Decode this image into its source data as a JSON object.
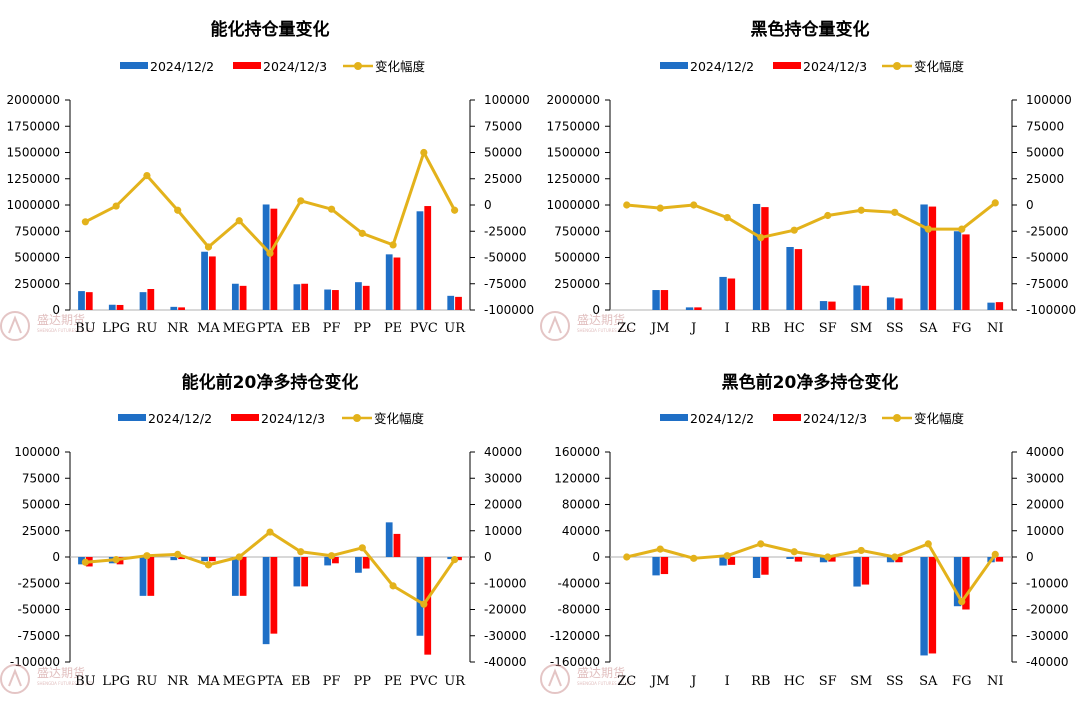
{
  "colors": {
    "series1": "#1f6fc6",
    "series2": "#ff0000",
    "line": "#e3b21b",
    "axis": "#000000",
    "watermark": "#c98b8b"
  },
  "watermark": {
    "text": "盛达期货",
    "sub": "SHENGDA FUTURES CO.,LTD."
  },
  "chart_data": [
    {
      "type": "bar",
      "title": "能化持仓量变化",
      "legend": [
        "2024/12/2",
        "2024/12/3",
        "变化幅度"
      ],
      "categories": [
        "BU",
        "LPG",
        "RU",
        "NR",
        "MA",
        "MEG",
        "PTA",
        "EB",
        "PF",
        "PP",
        "PE",
        "PVC",
        "UR"
      ],
      "series": [
        {
          "name": "2024/12/2",
          "values": [
            180000,
            50000,
            170000,
            30000,
            555000,
            250000,
            1005000,
            245000,
            195000,
            265000,
            530000,
            940000,
            135000
          ]
        },
        {
          "name": "2024/12/3",
          "values": [
            170000,
            48000,
            200000,
            25000,
            510000,
            230000,
            965000,
            250000,
            190000,
            230000,
            500000,
            990000,
            125000
          ]
        }
      ],
      "line": {
        "name": "变化幅度",
        "values": [
          -16000,
          -1000,
          28000,
          -5000,
          -40000,
          -15000,
          -46000,
          4000,
          -4000,
          -27000,
          -38000,
          50000,
          -5000
        ]
      },
      "ylim": [
        0,
        2000000
      ],
      "yticks": [
        "0",
        "250000",
        "500000",
        "750000",
        "1000000",
        "1250000",
        "1500000",
        "1750000",
        "2000000"
      ],
      "y2lim": [
        -100000,
        100000
      ],
      "y2ticks": [
        "-100000",
        "-75000",
        "-50000",
        "-25000",
        "0",
        "25000",
        "50000",
        "75000",
        "100000"
      ],
      "legend_position": "top"
    },
    {
      "type": "bar",
      "title": "黑色持仓量变化",
      "legend": [
        "2024/12/2",
        "2024/12/3",
        "变化幅度"
      ],
      "categories": [
        "ZC",
        "JM",
        "J",
        "I",
        "RB",
        "HC",
        "SF",
        "SM",
        "SS",
        "SA",
        "FG",
        "NI"
      ],
      "series": [
        {
          "name": "2024/12/2",
          "values": [
            0,
            190000,
            25000,
            315000,
            1010000,
            600000,
            85000,
            235000,
            120000,
            1005000,
            750000,
            70000
          ]
        },
        {
          "name": "2024/12/3",
          "values": [
            0,
            190000,
            25000,
            300000,
            980000,
            580000,
            80000,
            230000,
            110000,
            985000,
            720000,
            75000
          ]
        }
      ],
      "line": {
        "name": "变化幅度",
        "values": [
          0,
          -3000,
          0,
          -12000,
          -31000,
          -24000,
          -10000,
          -5000,
          -7000,
          -23000,
          -23000,
          2000
        ]
      },
      "ylim": [
        0,
        2000000
      ],
      "yticks": [
        "0",
        "250000",
        "500000",
        "750000",
        "1000000",
        "1250000",
        "1500000",
        "1750000",
        "2000000"
      ],
      "y2lim": [
        -100000,
        100000
      ],
      "y2ticks": [
        "-100000",
        "-75000",
        "-50000",
        "-25000",
        "0",
        "25000",
        "50000",
        "75000",
        "100000"
      ],
      "legend_position": "top"
    },
    {
      "type": "bar",
      "title": "能化前20净多持仓变化",
      "legend": [
        "2024/12/2",
        "2024/12/3",
        "变化幅度"
      ],
      "categories": [
        "BU",
        "LPG",
        "RU",
        "NR",
        "MA",
        "MEG",
        "PTA",
        "EB",
        "PF",
        "PP",
        "PE",
        "PVC",
        "UR"
      ],
      "series": [
        {
          "name": "2024/12/2",
          "values": [
            -7000,
            -6000,
            -37000,
            -3000,
            -4000,
            -37000,
            -83000,
            -28000,
            -8000,
            -15000,
            33000,
            -75000,
            -2000
          ]
        },
        {
          "name": "2024/12/3",
          "values": [
            -9000,
            -7000,
            -37000,
            -2000,
            -4000,
            -37000,
            -73000,
            -28000,
            -6000,
            -11000,
            22000,
            -93000,
            -3000
          ]
        }
      ],
      "line": {
        "name": "变化幅度",
        "values": [
          -2000,
          -1000,
          500,
          1000,
          -3000,
          0,
          9500,
          2000,
          500,
          3500,
          -11000,
          -18000,
          -1000
        ]
      },
      "ylim": [
        -100000,
        100000
      ],
      "yticks": [
        "-100000",
        "-75000",
        "-50000",
        "-25000",
        "0",
        "25000",
        "50000",
        "75000",
        "100000"
      ],
      "y2lim": [
        -40000,
        40000
      ],
      "y2ticks": [
        "-40000",
        "-30000",
        "-20000",
        "-10000",
        "0",
        "10000",
        "20000",
        "30000",
        "40000"
      ],
      "legend_position": "top"
    },
    {
      "type": "bar",
      "title": "黑色前20净多持仓变化",
      "legend": [
        "2024/12/2",
        "2024/12/3",
        "变化幅度"
      ],
      "categories": [
        "ZC",
        "JM",
        "J",
        "I",
        "RB",
        "HC",
        "SF",
        "SM",
        "SS",
        "SA",
        "FG",
        "NI"
      ],
      "series": [
        {
          "name": "2024/12/2",
          "values": [
            0,
            -28000,
            0,
            -13000,
            -32000,
            -3000,
            -8000,
            -45000,
            -8000,
            -150000,
            -75000,
            -8000
          ]
        },
        {
          "name": "2024/12/3",
          "values": [
            0,
            -26000,
            0,
            -12000,
            -27000,
            -7000,
            -7000,
            -42000,
            -8000,
            -147000,
            -80000,
            -7000
          ]
        }
      ],
      "line": {
        "name": "变化幅度",
        "values": [
          0,
          3000,
          -500,
          500,
          5000,
          2000,
          0,
          2500,
          0,
          5000,
          -17000,
          1000
        ]
      },
      "ylim": [
        -160000,
        160000
      ],
      "yticks": [
        "-160000",
        "-120000",
        "-80000",
        "-40000",
        "0",
        "40000",
        "80000",
        "120000",
        "160000"
      ],
      "y2lim": [
        -40000,
        40000
      ],
      "y2ticks": [
        "-40000",
        "-30000",
        "-20000",
        "-10000",
        "0",
        "10000",
        "20000",
        "30000",
        "40000"
      ],
      "legend_position": "top"
    }
  ]
}
